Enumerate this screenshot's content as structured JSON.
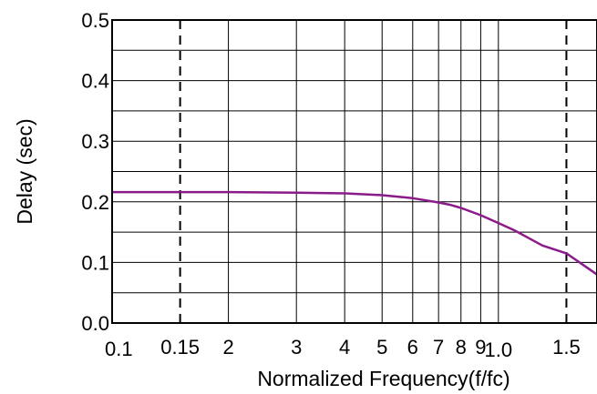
{
  "chart_data": {
    "type": "line",
    "title": "",
    "xlabel": "Normalized Frequency(f/fc)",
    "ylabel": "Delay (sec)",
    "x_scale": "log",
    "xlim": [
      0.1,
      1.8
    ],
    "ylim": [
      0.0,
      0.5
    ],
    "grid": true,
    "x_ticks": [
      {
        "value": 0.1,
        "label": "0.1"
      },
      {
        "value": 0.15,
        "label": "0.15"
      },
      {
        "value": 0.2,
        "label": "2"
      },
      {
        "value": 0.3,
        "label": "3"
      },
      {
        "value": 0.4,
        "label": "4"
      },
      {
        "value": 0.5,
        "label": "5"
      },
      {
        "value": 0.6,
        "label": "6"
      },
      {
        "value": 0.7,
        "label": "7"
      },
      {
        "value": 0.8,
        "label": "8"
      },
      {
        "value": 0.9,
        "label": "9"
      },
      {
        "value": 1.0,
        "label": "1.0"
      },
      {
        "value": 1.5,
        "label": "1.5"
      }
    ],
    "y_ticks": [
      {
        "value": 0.0,
        "label": "0.0"
      },
      {
        "value": 0.1,
        "label": "0.1"
      },
      {
        "value": 0.2,
        "label": "0.2"
      },
      {
        "value": 0.3,
        "label": "0.3"
      },
      {
        "value": 0.4,
        "label": "0.4"
      },
      {
        "value": 0.5,
        "label": "0.5"
      }
    ],
    "x_dashed_lines": [
      0.15,
      1.5
    ],
    "series": [
      {
        "color": "#8B1A8B",
        "x": [
          0.1,
          0.15,
          0.2,
          0.3,
          0.4,
          0.5,
          0.6,
          0.7,
          0.75,
          0.8,
          0.9,
          1.0,
          1.1,
          1.2,
          1.3,
          1.5,
          1.8
        ],
        "y": [
          0.216,
          0.216,
          0.216,
          0.215,
          0.214,
          0.211,
          0.206,
          0.199,
          0.195,
          0.19,
          0.178,
          0.165,
          0.153,
          0.14,
          0.128,
          0.115,
          0.08
        ]
      }
    ]
  }
}
